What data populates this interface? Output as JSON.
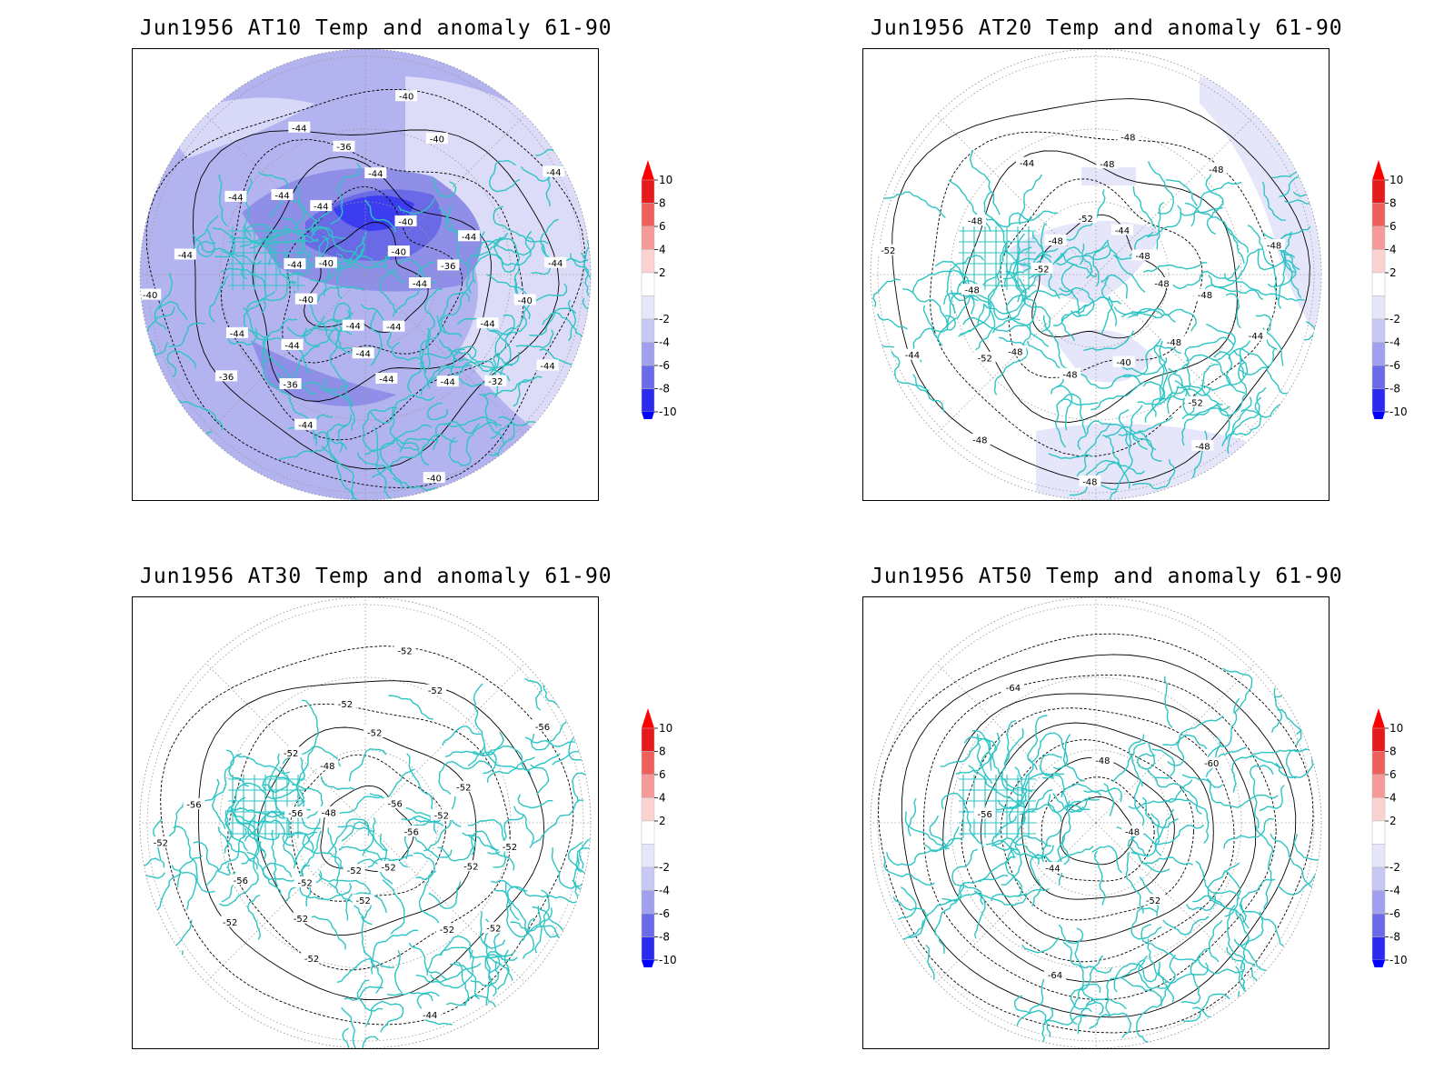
{
  "panels": [
    {
      "title": "Jun1956 AT10 Temp and anomaly 61-90",
      "contour_labels": [
        "-44",
        "-44",
        "-44",
        "-44",
        "-44",
        "-44",
        "-44",
        "-44",
        "-44",
        "-44",
        "-40",
        "-40",
        "-40",
        "-36",
        "-36",
        "-36",
        "-32",
        "-40",
        "-40",
        "-44",
        "-44",
        "-40",
        "-36",
        "-40",
        "-44",
        "-44",
        "-44",
        "-44",
        "-44",
        "-44",
        "-40",
        "-40",
        "-44",
        "-44",
        "-44"
      ],
      "shading": "blue"
    },
    {
      "title": "Jun1956 AT20 Temp and anomaly 61-90",
      "contour_labels": [
        "-48",
        "-48",
        "-48",
        "-52",
        "-52",
        "-48",
        "-48",
        "-44",
        "-44",
        "-44",
        "-44",
        "-40",
        "-48",
        "-48",
        "-48",
        "-52",
        "-48",
        "-48",
        "-48",
        "-48",
        "-48",
        "-48",
        "-52",
        "-48",
        "-48",
        "-52"
      ],
      "shading": "light"
    },
    {
      "title": "Jun1956 AT30 Temp and anomaly 61-90",
      "contour_labels": [
        "-56",
        "-52",
        "-52",
        "-52",
        "-56",
        "-56",
        "-52",
        "-48",
        "-52",
        "-56",
        "-52",
        "-44",
        "-48",
        "-52",
        "-52",
        "-52",
        "-52",
        "-52",
        "-56",
        "-52",
        "-52",
        "-52",
        "-52",
        "-52",
        "-52",
        "-56",
        "-52",
        "-52"
      ],
      "shading": "none"
    },
    {
      "title": "Jun1956 AT50 Temp and anomaly 61-90",
      "contour_labels": [
        "-48",
        "-44",
        "-48",
        "-52",
        "-56",
        "-60",
        "-64",
        "-64"
      ],
      "shading": "none"
    }
  ],
  "colorbar": {
    "labels": [
      "10",
      "8",
      "6",
      "4",
      "2",
      "-2",
      "-4",
      "-6",
      "-8",
      "-10"
    ],
    "colors": [
      "#e41a1c",
      "#f0605a",
      "#f59a96",
      "#fad3d1",
      "#ffffff",
      "#e6e6fa",
      "#c8c8f5",
      "#a0a0ee",
      "#6b6bea",
      "#2b2bef"
    ],
    "top_color": "#ff0000",
    "bottom_color": "#0000ff"
  },
  "style": {
    "coast_color": "#2ec4c4",
    "contour_color": "#000000"
  }
}
